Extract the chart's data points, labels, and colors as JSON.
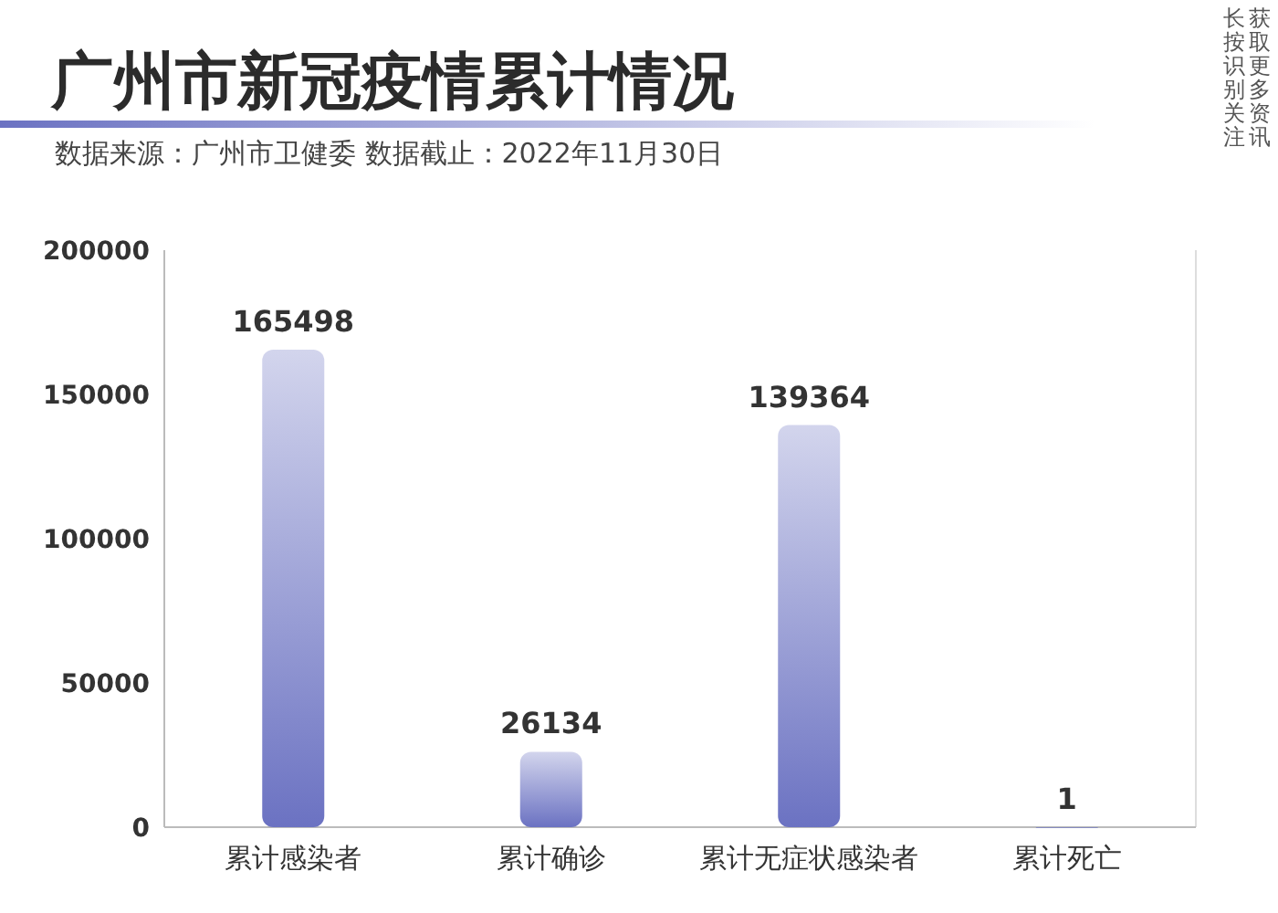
{
  "chart_data": {
    "type": "bar",
    "title": "广州市新冠疫情累计情况",
    "subtitle": "数据来源：广州市卫健委 数据截止：2022年11月30日",
    "annotations": [
      "长按识别关注",
      "获取更多资讯"
    ],
    "categories": [
      "累计感染者",
      "累计确诊",
      "累计无症状感染者",
      "累计死亡"
    ],
    "values": [
      165498,
      26134,
      139364,
      1
    ],
    "color": "#6b72c2",
    "ylim": [
      0,
      200000
    ],
    "yticks": [
      0,
      50000,
      100000,
      150000,
      200000
    ],
    "data_labels": true,
    "grid": false
  }
}
